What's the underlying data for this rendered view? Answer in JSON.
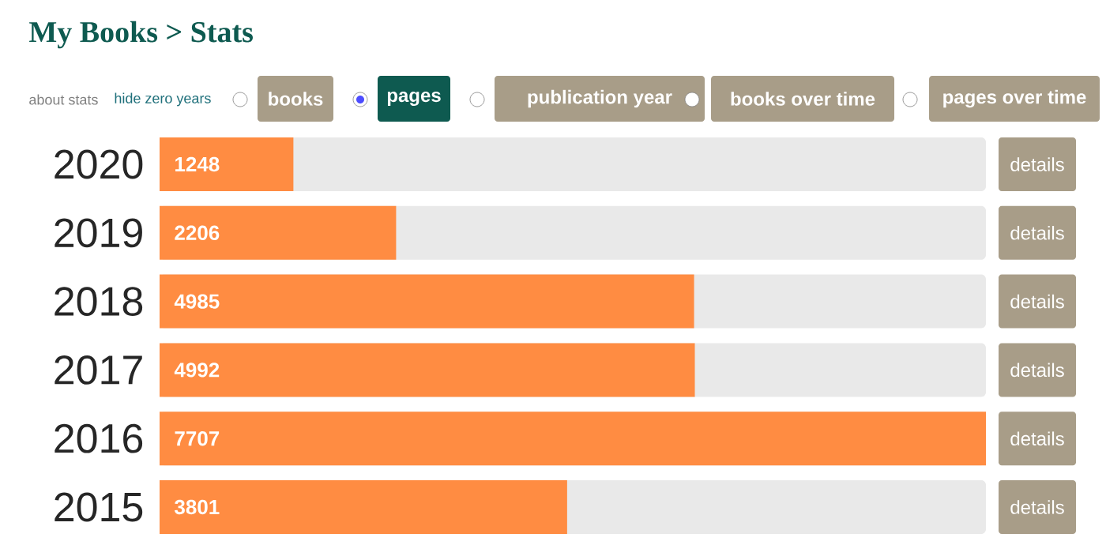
{
  "chart_data": {
    "type": "bar",
    "orientation": "horizontal",
    "title": "My Books > Stats",
    "categories": [
      "2020",
      "2019",
      "2018",
      "2017",
      "2016",
      "2015"
    ],
    "values": [
      1248,
      2206,
      4985,
      4992,
      7707,
      3801
    ],
    "color": "#ff8c42",
    "xlim": [
      0,
      7707
    ],
    "tick_labels": "y",
    "data_labels": true,
    "annotations": [
      "about stats",
      "hide zero years",
      "books",
      "pages",
      "publication year",
      "books over time",
      "pages over time",
      "details",
      "details",
      "details",
      "details",
      "details",
      "details"
    ]
  }
}
